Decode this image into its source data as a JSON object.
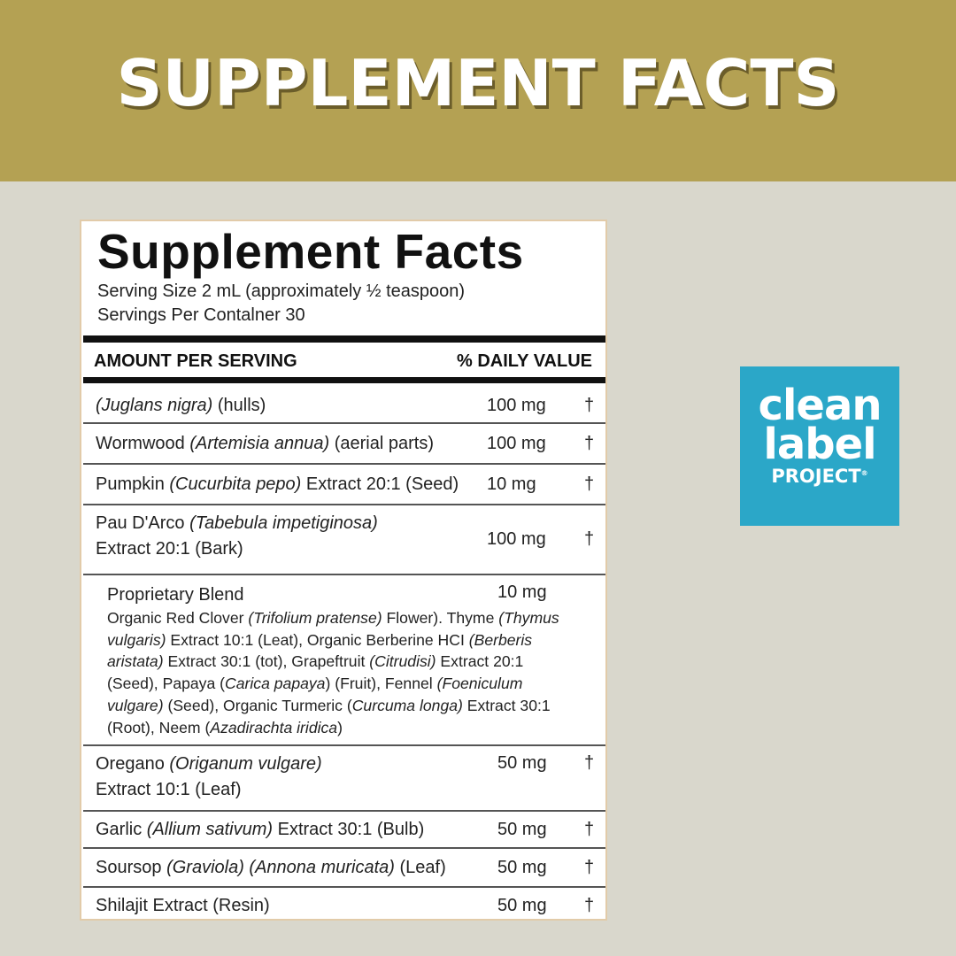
{
  "banner": {
    "title": "SUPPLEMENT FACTS",
    "color": "#b4a153"
  },
  "label": {
    "title": "Supplement Facts",
    "serving_size": "Serving Size 2 mL (approximately ½ teaspoon)",
    "servings_per_container": "Servings Per Contalner 30",
    "col_amount": "AMOUNT PER SERVING",
    "col_dv": "% DAILY VALUE",
    "rows": [
      {
        "name": [
          {
            "t": "(Juglans nigra)",
            "i": true
          },
          {
            "t": " (hulls)"
          }
        ],
        "amount": "100 mg",
        "dv": "†"
      },
      {
        "name": [
          {
            "t": "Wormwood "
          },
          {
            "t": "(Artemisia annua)",
            "i": true
          },
          {
            "t": " (aerial parts)"
          }
        ],
        "amount": "100 mg",
        "dv": "†"
      },
      {
        "name": [
          {
            "t": "Pumpkin "
          },
          {
            "t": "(Cucurbita pepo)",
            "i": true
          },
          {
            "t": " Extract 20:1 (Seed)"
          }
        ],
        "amount": "10 mg",
        "dv": "†"
      },
      {
        "name": [
          {
            "t": "Pau D'Arco "
          },
          {
            "t": "(Tabebula impetiginosa)",
            "i": true
          },
          {
            "t": "\nExtract 20:1 (Bark)"
          }
        ],
        "amount": "100 mg",
        "dv": "†"
      },
      {
        "blend": true,
        "name": [
          {
            "t": "Proprietary Blend"
          }
        ],
        "amount": "10 mg",
        "dv": "",
        "ingredients": [
          {
            "t": "Organic Red Clover "
          },
          {
            "t": "(Trifolium pratense)",
            "i": true
          },
          {
            "t": " Flower). Thyme "
          },
          {
            "t": "(Thymus vulgaris)",
            "i": true
          },
          {
            "t": " Extract 10:1 (Leat), Organic Berberine HCI "
          },
          {
            "t": "(Berberis aristata)",
            "i": true
          },
          {
            "t": " Extract 30:1 (tot), Grapeftruit "
          },
          {
            "t": "(Citrudisi)",
            "i": true
          },
          {
            "t": " Extract 20:1 (Seed), Papaya ("
          },
          {
            "t": "Carica papaya",
            "i": true
          },
          {
            "t": ") (Fruit), Fennel "
          },
          {
            "t": "(Foeniculum vulgare)",
            "i": true
          },
          {
            "t": " (Seed), Organic Turmeric ("
          },
          {
            "t": "Curcuma longa)",
            "i": true
          },
          {
            "t": " Extract 30:1 (Root), Neem ("
          },
          {
            "t": "Azadirachta iridica",
            "i": true
          },
          {
            "t": ")"
          }
        ]
      },
      {
        "name": [
          {
            "t": "Oregano "
          },
          {
            "t": "(Origanum vulgare)",
            "i": true
          },
          {
            "t": "\nExtract 10:1 (Leaf)"
          }
        ],
        "amount": "50 mg",
        "dv": "†"
      },
      {
        "name": [
          {
            "t": "Garlic "
          },
          {
            "t": "(Allium sativum)",
            "i": true
          },
          {
            "t": " Extract 30:1 (Bulb)"
          }
        ],
        "amount": "50 mg",
        "dv": "†"
      },
      {
        "name": [
          {
            "t": "Soursop "
          },
          {
            "t": "(Graviola) (Annona muricata)",
            "i": true
          },
          {
            "t": " (Leaf)"
          }
        ],
        "amount": "50 mg",
        "dv": "†"
      },
      {
        "name": [
          {
            "t": "Shilajit Extract (Resin)"
          }
        ],
        "amount": "50 mg",
        "dv": "†"
      }
    ]
  },
  "badge": {
    "line1": "clean",
    "line2": "label",
    "line3": "PROJECT",
    "mark": "®",
    "color": "#2ba7c8"
  }
}
